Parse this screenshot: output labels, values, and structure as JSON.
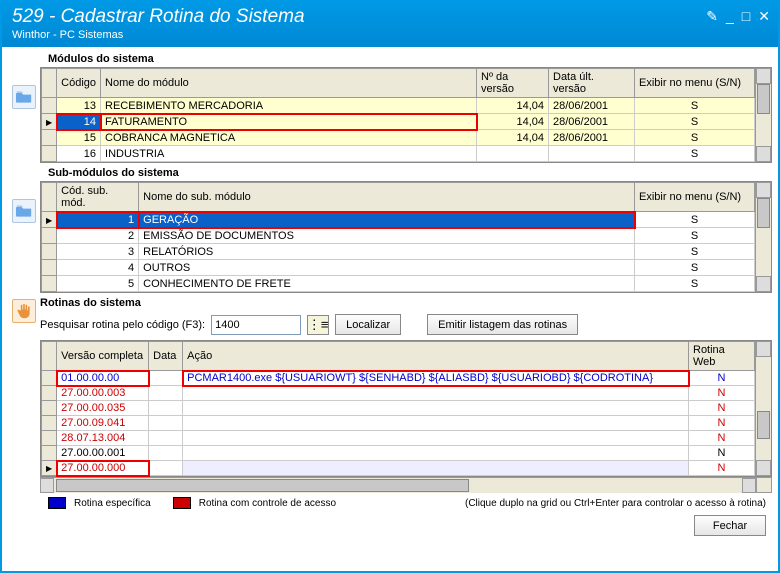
{
  "window": {
    "title": "529 - Cadastrar Rotina do Sistema",
    "subtitle": "Winthor - PC Sistemas",
    "controls": {
      "edit": "✎",
      "min": "_",
      "max": "□",
      "close": "✕"
    }
  },
  "colors": {
    "titlebar": "#0099e5",
    "selected": "#0a62c9",
    "highlight_row": "#ffffcf",
    "red_outline": "#ee0000",
    "blue_text": "#0000cc",
    "red_text": "#cc0000",
    "legend_blue": "#0000cc",
    "legend_red": "#cc0000"
  },
  "modules": {
    "title": "Módulos do sistema",
    "columns": [
      "Código",
      "Nome do módulo",
      "Nº da versão",
      "Data últ. versão",
      "Exibir no menu (S/N)"
    ],
    "rows": [
      {
        "codigo": "13",
        "nome": "RECEBIMENTO MERCADORIA",
        "versao": "14,04",
        "data": "28/06/2001",
        "exibir": "S",
        "sel": false
      },
      {
        "codigo": "14",
        "nome": "FATURAMENTO",
        "versao": "14,04",
        "data": "28/06/2001",
        "exibir": "S",
        "sel": true
      },
      {
        "codigo": "15",
        "nome": "COBRANCA MAGNETICA",
        "versao": "14,04",
        "data": "28/06/2001",
        "exibir": "S",
        "sel": false
      },
      {
        "codigo": "16",
        "nome": "INDUSTRIA",
        "versao": "",
        "data": "",
        "exibir": "S",
        "sel": false
      }
    ]
  },
  "submodules": {
    "title": "Sub-módulos do sistema",
    "columns": [
      "Cód. sub. mód.",
      "Nome do sub. módulo",
      "Exibir no menu (S/N)"
    ],
    "rows": [
      {
        "cod": "1",
        "nome": "GERAÇÃO",
        "exibir": "S",
        "sel": true
      },
      {
        "cod": "2",
        "nome": "EMISSÃO DE DOCUMENTOS",
        "exibir": "S",
        "sel": false
      },
      {
        "cod": "3",
        "nome": "RELATÓRIOS",
        "exibir": "S",
        "sel": false
      },
      {
        "cod": "4",
        "nome": "OUTROS",
        "exibir": "S",
        "sel": false
      },
      {
        "cod": "5",
        "nome": "CONHECIMENTO DE FRETE",
        "exibir": "S",
        "sel": false
      }
    ]
  },
  "rotinas": {
    "title": "Rotinas do sistema",
    "search_label": "Pesquisar rotina pelo código (F3):",
    "search_value": "1400",
    "btn_localizar": "Localizar",
    "btn_emitir": "Emitir listagem das rotinas",
    "columns": [
      "Versão completa",
      "Data",
      "Ação",
      "Rotina Web"
    ],
    "rows": [
      {
        "versao": "01.00.00.00",
        "data": "",
        "acao": "PCMAR1400.exe ${USUARIOWT} ${SENHABD} ${ALIASBD} ${USUARIOBD} ${CODROTINA}",
        "web": "N",
        "color": "blue",
        "sel": false,
        "box": true
      },
      {
        "versao": "27.00.00.003",
        "data": "",
        "acao": "",
        "web": "N",
        "color": "red",
        "sel": false
      },
      {
        "versao": "27.00.00.035",
        "data": "",
        "acao": "",
        "web": "N",
        "color": "red",
        "sel": false
      },
      {
        "versao": "27.00.09.041",
        "data": "",
        "acao": "",
        "web": "N",
        "color": "red",
        "sel": false
      },
      {
        "versao": "28.07.13.004",
        "data": "",
        "acao": "",
        "web": "N",
        "color": "red",
        "sel": false
      },
      {
        "versao": "27.00.00.001",
        "data": "",
        "acao": "",
        "web": "N",
        "color": "black",
        "sel": false
      },
      {
        "versao": "27.00.00.000",
        "data": "",
        "acao": "",
        "web": "N",
        "color": "red",
        "sel": true
      }
    ]
  },
  "legend": {
    "specific": "Rotina específica",
    "access": "Rotina com controle de acesso",
    "note": "(Clique duplo na grid ou Ctrl+Enter para controlar o acesso à rotina)"
  },
  "footer": {
    "close": "Fechar"
  }
}
